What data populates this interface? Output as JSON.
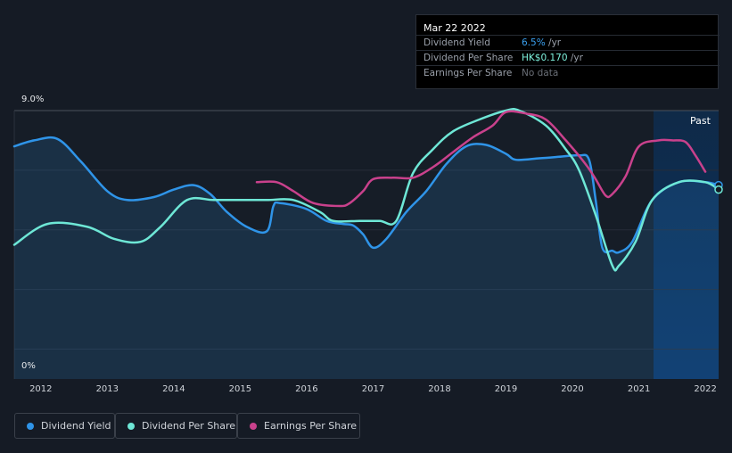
{
  "tooltip": {
    "date": "Mar 22 2022",
    "rows": [
      {
        "label": "Dividend Yield",
        "value": "6.5%",
        "unit": "/yr",
        "color": "#3aa0ef"
      },
      {
        "label": "Dividend Per Share",
        "value": "HK$0.170",
        "unit": "/yr",
        "color": "#7ff3df"
      },
      {
        "label": "Earnings Per Share",
        "value": "No data",
        "unit": "",
        "color": "#6b7078"
      }
    ]
  },
  "past_label": "Past",
  "legend": [
    {
      "label": "Dividend Yield",
      "color": "#2f94e8"
    },
    {
      "label": "Dividend Per Share",
      "color": "#6ee7d6"
    },
    {
      "label": "Earnings Per Share",
      "color": "#c9418c"
    }
  ],
  "chart_data": {
    "type": "line",
    "y_tick_labels": [
      "9.0%",
      "0%"
    ],
    "ylim": [
      0,
      9
    ],
    "xlim": [
      2011.6,
      2022.2
    ],
    "x_ticks": [
      "2012",
      "2013",
      "2014",
      "2015",
      "2016",
      "2017",
      "2018",
      "2019",
      "2020",
      "2021",
      "2022"
    ],
    "grid": true,
    "series": [
      {
        "name": "Dividend Yield",
        "color": "#2f94e8",
        "filled": true,
        "x": [
          2011.6,
          2011.9,
          2012.25,
          2012.6,
          2013.0,
          2013.3,
          2013.7,
          2014.0,
          2014.3,
          2014.55,
          2014.8,
          2015.1,
          2015.4,
          2015.5,
          2015.6,
          2016.0,
          2016.3,
          2016.55,
          2016.7,
          2016.85,
          2017.0,
          2017.2,
          2017.5,
          2017.8,
          2018.1,
          2018.4,
          2018.7,
          2019.0,
          2019.15,
          2019.5,
          2019.8,
          2020.1,
          2020.25,
          2020.35,
          2020.45,
          2020.6,
          2020.7,
          2020.9,
          2021.2,
          2021.6,
          2022.0,
          2022.2
        ],
        "y": [
          7.8,
          8.0,
          8.05,
          7.3,
          6.3,
          6.0,
          6.1,
          6.35,
          6.5,
          6.2,
          5.6,
          5.1,
          4.95,
          5.8,
          5.9,
          5.7,
          5.3,
          5.2,
          5.15,
          4.85,
          4.4,
          4.7,
          5.6,
          6.3,
          7.2,
          7.8,
          7.85,
          7.55,
          7.35,
          7.4,
          7.45,
          7.5,
          7.35,
          6.0,
          4.4,
          4.3,
          4.25,
          4.6,
          6.0,
          6.6,
          6.6,
          6.5
        ]
      },
      {
        "name": "Dividend Per Share",
        "color": "#6ee7d6",
        "x": [
          2011.6,
          2012.1,
          2012.7,
          2013.1,
          2013.5,
          2013.8,
          2014.2,
          2014.6,
          2015.0,
          2015.4,
          2015.8,
          2016.2,
          2016.4,
          2016.8,
          2017.1,
          2017.35,
          2017.6,
          2017.9,
          2018.2,
          2018.6,
          2019.0,
          2019.2,
          2019.6,
          2019.9,
          2020.1,
          2020.35,
          2020.6,
          2020.7,
          2020.95,
          2021.2,
          2021.6,
          2022.0,
          2022.2
        ],
        "y": [
          4.5,
          5.2,
          5.1,
          4.7,
          4.6,
          5.1,
          6.0,
          6.0,
          6.0,
          6.0,
          6.0,
          5.6,
          5.3,
          5.3,
          5.3,
          5.3,
          6.9,
          7.7,
          8.3,
          8.7,
          9.0,
          9.0,
          8.5,
          7.7,
          7.0,
          5.5,
          3.8,
          3.8,
          4.6,
          6.0,
          6.6,
          6.6,
          6.35
        ]
      },
      {
        "name": "Earnings Per Share",
        "color": "#c9418c",
        "x": [
          2015.25,
          2015.55,
          2015.8,
          2016.1,
          2016.5,
          2016.65,
          2016.85,
          2017.0,
          2017.3,
          2017.6,
          2017.9,
          2018.2,
          2018.5,
          2018.8,
          2019.0,
          2019.3,
          2019.6,
          2019.9,
          2020.2,
          2020.35,
          2020.5,
          2020.6,
          2020.8,
          2021.0,
          2021.3,
          2021.5,
          2021.7,
          2021.85,
          2022.0
        ],
        "y": [
          6.6,
          6.6,
          6.3,
          5.9,
          5.8,
          5.9,
          6.3,
          6.7,
          6.75,
          6.75,
          7.1,
          7.6,
          8.1,
          8.5,
          8.95,
          8.9,
          8.7,
          8.0,
          7.2,
          6.7,
          6.15,
          6.2,
          6.8,
          7.8,
          8.0,
          8.0,
          7.95,
          7.5,
          6.95
        ]
      }
    ]
  }
}
